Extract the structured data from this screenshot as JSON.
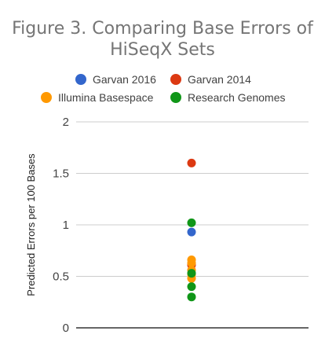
{
  "chart_data": {
    "type": "scatter",
    "title_line1": "Figure 3. Comparing Base Errors of",
    "title_line2": "HiSeqX Sets",
    "ylabel": "Predicted Errors per 100 Bases",
    "xlabel": "",
    "ylim": [
      0,
      2
    ],
    "yticks": [
      "0",
      "0.5",
      "1",
      "1.5",
      "2"
    ],
    "grid": true,
    "legend_position": "top",
    "series": [
      {
        "name": "Garvan 2016",
        "color": "#3366cc",
        "values": [
          0.93
        ]
      },
      {
        "name": "Garvan 2014",
        "color": "#dc3912",
        "values": [
          1.6,
          0.61
        ]
      },
      {
        "name": "Illumina Basespace",
        "color": "#ff9900",
        "values": [
          0.66,
          0.63,
          0.56,
          0.52,
          0.48
        ]
      },
      {
        "name": "Research Genomes",
        "color": "#109618",
        "values": [
          1.02,
          0.53,
          0.4,
          0.3
        ]
      }
    ]
  }
}
